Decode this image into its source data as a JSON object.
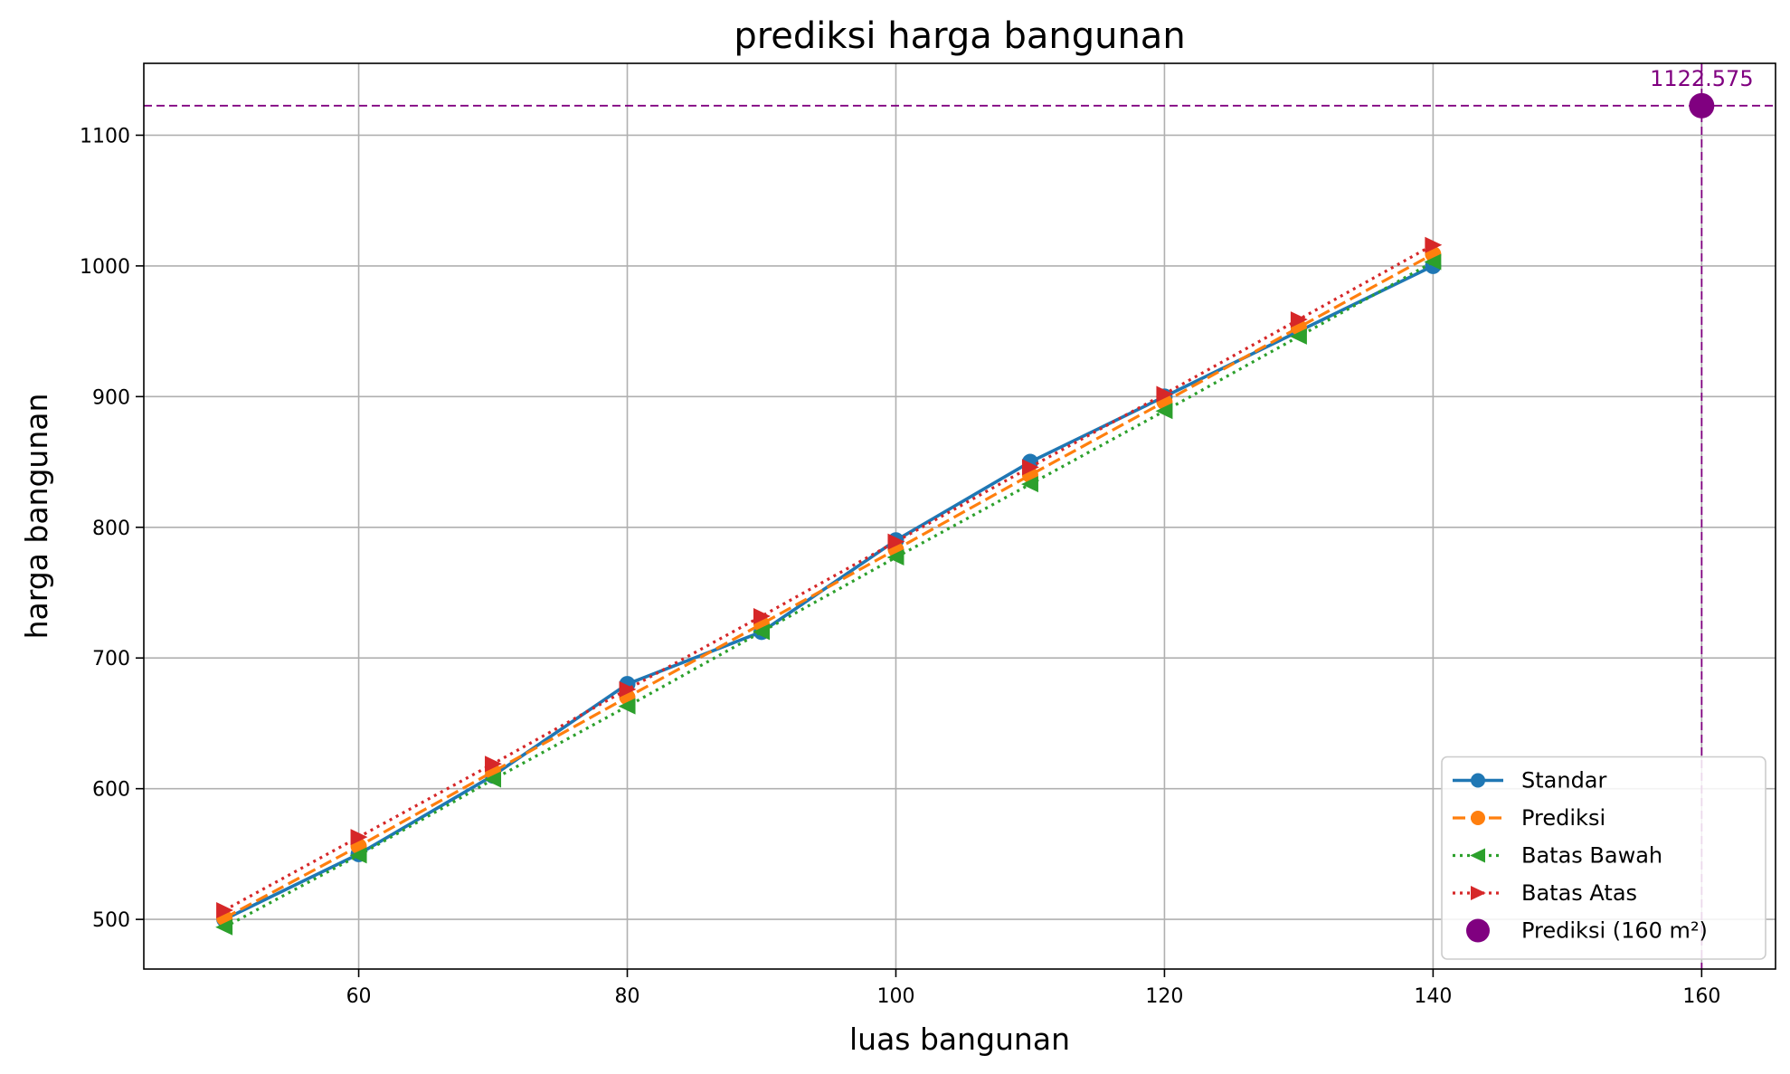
{
  "chart_data": {
    "type": "line",
    "title": "prediksi harga bangunan",
    "xlabel": "luas bangunan",
    "ylabel": "harga bangunan",
    "xlim": [
      44,
      165.5
    ],
    "ylim": [
      462,
      1155
    ],
    "xticks": [
      60,
      80,
      100,
      120,
      140,
      160
    ],
    "yticks": [
      500,
      600,
      700,
      800,
      900,
      1000,
      1100
    ],
    "grid": true,
    "legend_position": "lower-right",
    "series": [
      {
        "name": "Standar",
        "color": "#1f77b4",
        "line_style": "solid",
        "marker": "circle",
        "x": [
          50,
          60,
          70,
          80,
          90,
          100,
          110,
          120,
          130,
          140
        ],
        "y": [
          500,
          550,
          610,
          680,
          720,
          790,
          850,
          900,
          950,
          1000
        ]
      },
      {
        "name": "Prediksi",
        "color": "#ff7f0e",
        "line_style": "dashed",
        "marker": "circle",
        "x": [
          50,
          60,
          70,
          80,
          90,
          100,
          110,
          120,
          130,
          140
        ],
        "y": [
          501,
          556,
          613,
          670,
          726,
          783,
          840,
          896,
          953,
          1009
        ]
      },
      {
        "name": "Batas Bawah",
        "color": "#2ca02c",
        "line_style": "dotted",
        "marker": "triangle-left",
        "x": [
          50,
          60,
          70,
          80,
          90,
          100,
          110,
          120,
          130,
          140
        ],
        "y": [
          494,
          549,
          607,
          663,
          720,
          777,
          833,
          889,
          946,
          1003
        ]
      },
      {
        "name": "Batas Atas",
        "color": "#d62728",
        "line_style": "dotted",
        "marker": "triangle-right",
        "x": [
          50,
          60,
          70,
          80,
          90,
          100,
          110,
          120,
          130,
          140
        ],
        "y": [
          507,
          563,
          619,
          676,
          732,
          789,
          846,
          902,
          959,
          1016
        ]
      }
    ],
    "highlight": {
      "name": "Prediksi (160 m²)",
      "color": "#800080",
      "x": 160,
      "y": 1122.575,
      "label": "1122.575"
    }
  }
}
